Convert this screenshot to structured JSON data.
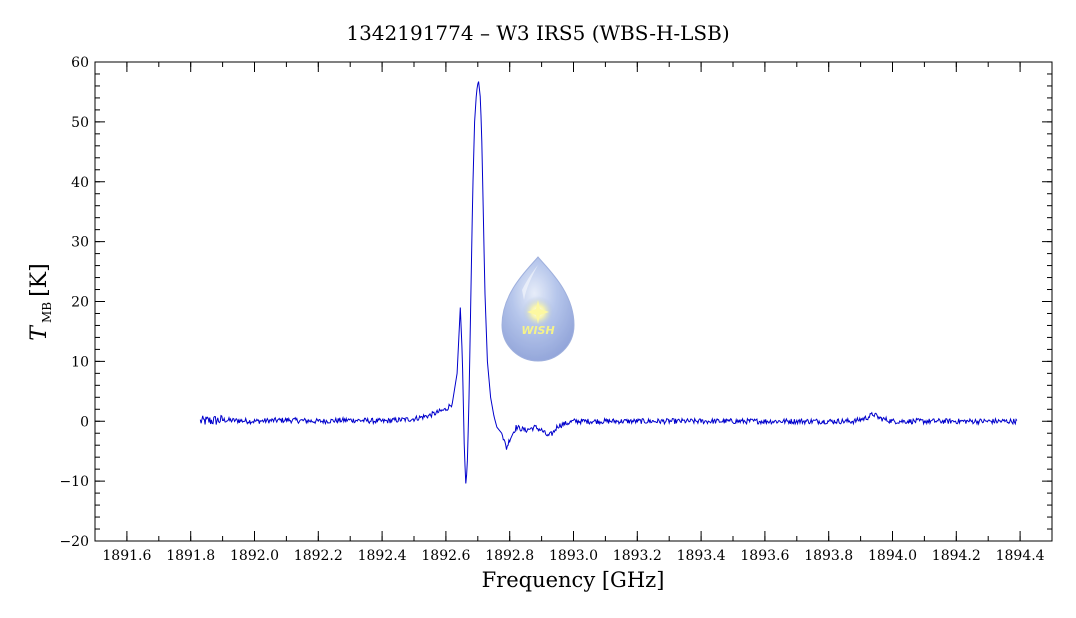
{
  "chart_data": {
    "type": "line",
    "title": "1342191774 – W3 IRS5 (WBS-H-LSB)",
    "xlabel": "Frequency [GHz]",
    "ylabel": {
      "symbol": "T",
      "subscript": "MB",
      "unit": "[K]"
    },
    "xlim": [
      1891.5,
      1894.5
    ],
    "ylim": [
      -20,
      60
    ],
    "xticks": [
      1891.6,
      1891.8,
      1892.0,
      1892.2,
      1892.4,
      1892.6,
      1892.8,
      1893.0,
      1893.2,
      1893.4,
      1893.6,
      1893.8,
      1894.0,
      1894.2,
      1894.4
    ],
    "xtick_labels": [
      "1891.6",
      "1891.8",
      "1892.0",
      "1892.2",
      "1892.4",
      "1892.6",
      "1892.8",
      "1893.0",
      "1893.2",
      "1893.4",
      "1893.6",
      "1893.8",
      "1894.0",
      "1894.2",
      "1894.4"
    ],
    "yticks": [
      -20,
      -10,
      0,
      10,
      20,
      30,
      40,
      50,
      60
    ],
    "ytick_labels": [
      "−20",
      "−10",
      "0",
      "10",
      "20",
      "30",
      "40",
      "50",
      "60"
    ],
    "grid": false,
    "series": [
      {
        "color": "#0000cc",
        "x": [
          1891.83,
          1891.9,
          1892.0,
          1892.1,
          1892.2,
          1892.3,
          1892.4,
          1892.5,
          1892.55,
          1892.6,
          1892.62,
          1892.635,
          1892.645,
          1892.652,
          1892.658,
          1892.663,
          1892.668,
          1892.673,
          1892.678,
          1892.684,
          1892.69,
          1892.696,
          1892.702,
          1892.708,
          1892.712,
          1892.716,
          1892.722,
          1892.73,
          1892.74,
          1892.75,
          1892.76,
          1892.775,
          1892.79,
          1892.8,
          1892.81,
          1892.82,
          1892.85,
          1892.88,
          1892.9,
          1892.92,
          1892.935,
          1892.95,
          1893.0,
          1893.2,
          1893.4,
          1893.6,
          1893.8,
          1893.88,
          1893.92,
          1893.94,
          1893.96,
          1894.0,
          1894.2,
          1894.39
        ],
        "y": [
          0,
          0.2,
          0,
          0.2,
          0,
          0.2,
          0,
          0.4,
          1,
          2,
          3,
          8,
          19,
          10,
          -5,
          -11,
          -6,
          5,
          20,
          38,
          50,
          55,
          57,
          54,
          48,
          38,
          22,
          10,
          4,
          1,
          -1,
          -2,
          -4.5,
          -3,
          -2,
          -1,
          -1.5,
          -1,
          -1.5,
          -2.5,
          -2,
          -0.8,
          0,
          0,
          0,
          0,
          0,
          0,
          0.6,
          1.2,
          0.5,
          0,
          0,
          0
        ]
      }
    ],
    "logo": {
      "text": "WISH"
    }
  }
}
